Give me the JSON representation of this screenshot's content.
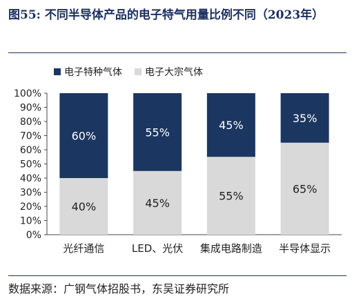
{
  "figure": {
    "title": "图55:  不同半导体产品的电子特气用量比例不同（2023年）",
    "source": "数据来源：广钢气体招股书，东吴证券研究所"
  },
  "chart_data": {
    "type": "bar",
    "stacked": true,
    "categories": [
      "光纤通信",
      "LED、光伏",
      "集成电路制造",
      "半导体显示"
    ],
    "series": [
      {
        "name": "电子大宗气体",
        "values": [
          40,
          45,
          55,
          65
        ],
        "color": "#d9d9d9",
        "label_color": "#222222"
      },
      {
        "name": "电子特种气体",
        "values": [
          60,
          55,
          45,
          35
        ],
        "color": "#1b3660",
        "label_color": "#ffffff"
      }
    ],
    "legend_order": [
      1,
      0
    ],
    "legend_position": "top-left",
    "ylim": [
      0,
      100
    ],
    "yticks": [
      0,
      10,
      20,
      30,
      40,
      50,
      60,
      70,
      80,
      90,
      100
    ],
    "ytick_suffix": "%",
    "grid": false
  }
}
